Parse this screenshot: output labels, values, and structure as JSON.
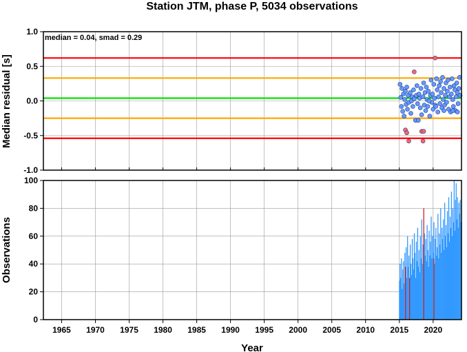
{
  "chart_data": [
    {
      "panel": "residuals",
      "type": "scatter",
      "title": "Station JTM, phase P, 5034 observations",
      "ylabel": "Median residual [s]",
      "annotation": "median = 0.04, smad = 0.29",
      "xlim": [
        1962.3,
        2024.2
      ],
      "ylim": [
        -1.0,
        1.0
      ],
      "yticks": [
        "1.0",
        "0.5",
        "0.0",
        "-0.5",
        "-1.0"
      ],
      "ytick_values": [
        1.0,
        0.5,
        0.0,
        -0.5,
        -1.0
      ],
      "grid": true,
      "reference_lines": [
        {
          "value": 0.62,
          "color": "#ff0000"
        },
        {
          "value": 0.33,
          "color": "#ffa500"
        },
        {
          "value": 0.04,
          "color": "#00e000"
        },
        {
          "value": -0.25,
          "color": "#ffa500"
        },
        {
          "value": -0.54,
          "color": "#ff0000"
        }
      ],
      "series": [
        {
          "color": "#6699ff",
          "points": [
            [
              2015.1,
              0.24
            ],
            [
              2015.2,
              0.05
            ],
            [
              2015.3,
              -0.08
            ],
            [
              2015.4,
              0.18
            ],
            [
              2015.5,
              -0.15
            ],
            [
              2015.6,
              0.1
            ],
            [
              2015.7,
              -0.22
            ],
            [
              2015.8,
              0.02
            ],
            [
              2015.9,
              0.14
            ],
            [
              2016.0,
              -0.05
            ],
            [
              2016.1,
              0.2
            ],
            [
              2016.2,
              -0.12
            ],
            [
              2016.3,
              0.08
            ],
            [
              2016.4,
              -0.02
            ],
            [
              2016.6,
              0.12
            ],
            [
              2016.7,
              -0.18
            ],
            [
              2016.8,
              0.0
            ],
            [
              2016.9,
              0.06
            ],
            [
              2017.0,
              -0.08
            ],
            [
              2017.1,
              0.16
            ],
            [
              2017.2,
              0.03
            ],
            [
              2017.4,
              -0.28
            ],
            [
              2017.5,
              0.08
            ],
            [
              2017.6,
              0.22
            ],
            [
              2017.7,
              -0.04
            ],
            [
              2017.8,
              -0.28
            ],
            [
              2017.9,
              0.1
            ],
            [
              2018.0,
              0.04
            ],
            [
              2018.1,
              -0.1
            ],
            [
              2018.2,
              0.18
            ],
            [
              2018.3,
              -0.2
            ],
            [
              2018.5,
              0.06
            ],
            [
              2018.6,
              0.26
            ],
            [
              2018.7,
              -0.06
            ],
            [
              2018.8,
              0.12
            ],
            [
              2018.9,
              -0.14
            ],
            [
              2019.0,
              0.2
            ],
            [
              2019.1,
              0.02
            ],
            [
              2019.2,
              -0.08
            ],
            [
              2019.3,
              0.14
            ],
            [
              2019.5,
              -0.22
            ],
            [
              2019.6,
              0.08
            ],
            [
              2019.7,
              0.3
            ],
            [
              2019.8,
              -0.02
            ],
            [
              2019.9,
              0.1
            ],
            [
              2020.0,
              -0.12
            ],
            [
              2020.1,
              0.24
            ],
            [
              2020.2,
              0.04
            ],
            [
              2020.3,
              -0.06
            ],
            [
              2020.5,
              0.32
            ],
            [
              2020.6,
              0.16
            ],
            [
              2020.7,
              -0.16
            ],
            [
              2020.8,
              0.06
            ],
            [
              2020.9,
              0.22
            ],
            [
              2021.0,
              -0.04
            ],
            [
              2021.1,
              0.28
            ],
            [
              2021.2,
              0.12
            ],
            [
              2021.3,
              -0.1
            ],
            [
              2021.4,
              0.34
            ],
            [
              2021.5,
              0.02
            ],
            [
              2021.6,
              0.18
            ],
            [
              2021.7,
              -0.06
            ],
            [
              2021.8,
              0.08
            ],
            [
              2021.9,
              0.26
            ],
            [
              2022.0,
              -0.02
            ],
            [
              2022.1,
              0.14
            ],
            [
              2022.2,
              0.3
            ],
            [
              2022.3,
              -0.12
            ],
            [
              2022.4,
              0.06
            ],
            [
              2022.5,
              0.2
            ],
            [
              2022.6,
              -0.16
            ],
            [
              2022.7,
              0.1
            ],
            [
              2022.8,
              0.32
            ],
            [
              2022.9,
              0.02
            ],
            [
              2023.0,
              -0.08
            ],
            [
              2023.1,
              0.22
            ],
            [
              2023.2,
              0.16
            ],
            [
              2023.3,
              -0.14
            ],
            [
              2023.4,
              0.06
            ],
            [
              2023.5,
              0.26
            ],
            [
              2023.6,
              0.12
            ],
            [
              2023.7,
              -0.04
            ],
            [
              2023.8,
              0.18
            ],
            [
              2023.9,
              0.34
            ],
            [
              2024.0,
              0.08
            ],
            [
              2023.6,
              -0.16
            ],
            [
              2022.9,
              -0.14
            ],
            [
              2021.6,
              -0.14
            ],
            [
              2020.4,
              -0.08
            ],
            [
              2019.4,
              0.0
            ]
          ]
        },
        {
          "color": "#ff6666",
          "points": [
            [
              2015.9,
              -0.42
            ],
            [
              2016.1,
              -0.46
            ],
            [
              2016.4,
              -0.58
            ],
            [
              2017.2,
              0.42
            ],
            [
              2018.3,
              -0.44
            ],
            [
              2018.5,
              -0.58
            ],
            [
              2018.6,
              -0.44
            ],
            [
              2020.3,
              0.62
            ]
          ]
        }
      ]
    },
    {
      "panel": "observations",
      "type": "bar",
      "ylabel": "Observations",
      "xlabel": "Year",
      "xlim": [
        1962.3,
        2024.2
      ],
      "ylim": [
        0,
        100
      ],
      "xticks": [
        "1965",
        "1970",
        "1975",
        "1980",
        "1985",
        "1990",
        "1995",
        "2000",
        "2005",
        "2010",
        "2015",
        "2020"
      ],
      "xtick_values": [
        1965,
        1970,
        1975,
        1980,
        1985,
        1990,
        1995,
        2000,
        2005,
        2010,
        2015,
        2020
      ],
      "yticks": [
        "100",
        "80",
        "60",
        "40",
        "20",
        "0"
      ],
      "ytick_values": [
        100,
        80,
        60,
        40,
        20,
        0
      ],
      "grid": true,
      "series": [
        {
          "color": "#3399ff",
          "values": [
            [
              2015.0,
              28
            ],
            [
              2015.1,
              40
            ],
            [
              2015.2,
              30
            ],
            [
              2015.3,
              44
            ],
            [
              2015.4,
              22
            ],
            [
              2015.5,
              36
            ],
            [
              2015.6,
              42
            ],
            [
              2015.7,
              26
            ],
            [
              2015.8,
              48
            ],
            [
              2015.9,
              34
            ],
            [
              2016.0,
              52
            ],
            [
              2016.1,
              30
            ],
            [
              2016.2,
              60
            ],
            [
              2016.3,
              38
            ],
            [
              2016.4,
              46
            ],
            [
              2016.5,
              28
            ],
            [
              2016.6,
              54
            ],
            [
              2016.7,
              40
            ],
            [
              2016.8,
              32
            ],
            [
              2016.9,
              58
            ],
            [
              2017.0,
              44
            ],
            [
              2017.1,
              36
            ],
            [
              2017.2,
              62
            ],
            [
              2017.3,
              48
            ],
            [
              2017.4,
              30
            ],
            [
              2017.5,
              56
            ],
            [
              2017.6,
              42
            ],
            [
              2017.7,
              66
            ],
            [
              2017.8,
              38
            ],
            [
              2017.9,
              50
            ],
            [
              2018.0,
              34
            ],
            [
              2018.1,
              60
            ],
            [
              2018.2,
              44
            ],
            [
              2018.3,
              72
            ],
            [
              2018.4,
              40
            ],
            [
              2018.5,
              54
            ],
            [
              2018.6,
              36
            ],
            [
              2018.7,
              62
            ],
            [
              2018.8,
              46
            ],
            [
              2018.9,
              58
            ],
            [
              2019.0,
              42
            ],
            [
              2019.1,
              68
            ],
            [
              2019.2,
              50
            ],
            [
              2019.3,
              38
            ],
            [
              2019.4,
              64
            ],
            [
              2019.5,
              46
            ],
            [
              2019.6,
              56
            ],
            [
              2019.7,
              74
            ],
            [
              2019.8,
              44
            ],
            [
              2019.9,
              60
            ],
            [
              2020.0,
              48
            ],
            [
              2020.1,
              70
            ],
            [
              2020.2,
              40
            ],
            [
              2020.3,
              58
            ],
            [
              2020.4,
              66
            ],
            [
              2020.5,
              46
            ],
            [
              2020.6,
              52
            ],
            [
              2020.7,
              76
            ],
            [
              2020.8,
              44
            ],
            [
              2020.9,
              62
            ],
            [
              2021.0,
              54
            ],
            [
              2021.1,
              80
            ],
            [
              2021.2,
              48
            ],
            [
              2021.3,
              66
            ],
            [
              2021.4,
              58
            ],
            [
              2021.5,
              72
            ],
            [
              2021.6,
              50
            ],
            [
              2021.7,
              84
            ],
            [
              2021.8,
              60
            ],
            [
              2021.9,
              68
            ],
            [
              2022.0,
              52
            ],
            [
              2022.1,
              78
            ],
            [
              2022.2,
              62
            ],
            [
              2022.3,
              88
            ],
            [
              2022.4,
              56
            ],
            [
              2022.5,
              74
            ],
            [
              2022.6,
              66
            ],
            [
              2022.7,
              92
            ],
            [
              2022.8,
              60
            ],
            [
              2022.9,
              80
            ],
            [
              2023.0,
              70
            ],
            [
              2023.1,
              100
            ],
            [
              2023.2,
              64
            ],
            [
              2023.3,
              86
            ],
            [
              2023.4,
              98
            ],
            [
              2023.5,
              72
            ],
            [
              2023.6,
              88
            ],
            [
              2023.7,
              66
            ],
            [
              2023.8,
              84
            ],
            [
              2023.9,
              76
            ],
            [
              2024.0,
              86
            ],
            [
              2024.1,
              70
            ]
          ]
        },
        {
          "color": "#cc2222",
          "values": [
            [
              2015.9,
              38
            ],
            [
              2016.5,
              30
            ],
            [
              2018.6,
              80
            ],
            [
              2020.1,
              44
            ]
          ]
        }
      ]
    }
  ]
}
